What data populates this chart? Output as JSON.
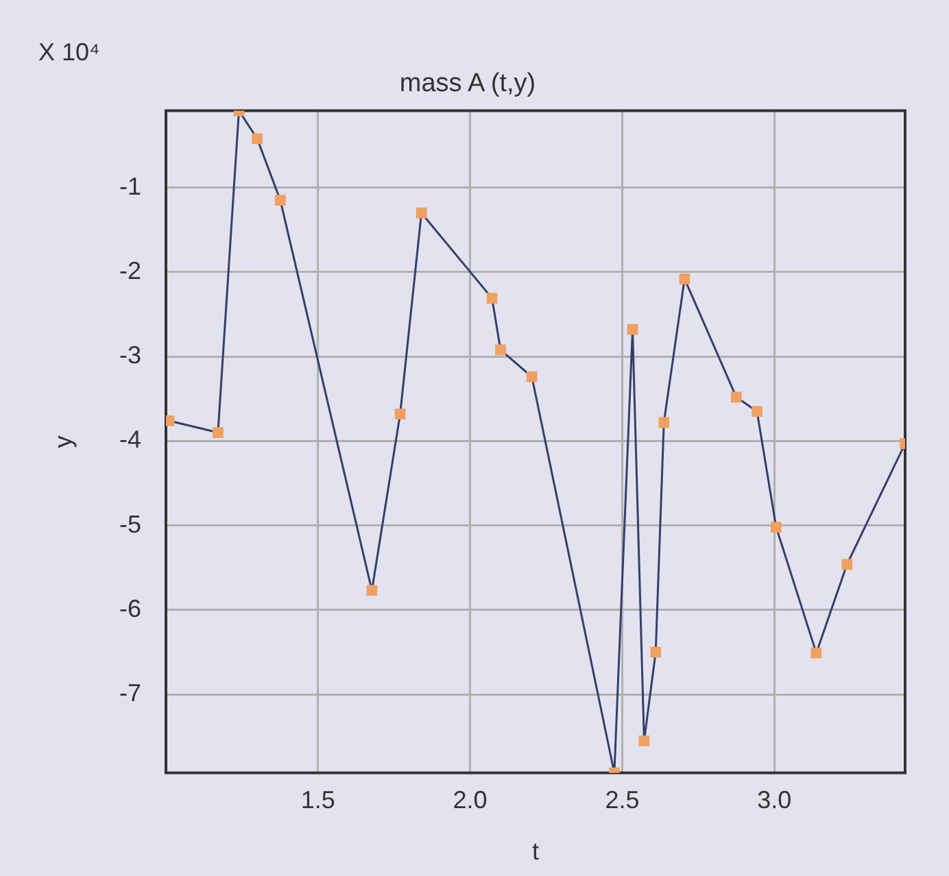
{
  "chart_data": {
    "type": "line",
    "title": "mass A (t,y)",
    "xlabel": "t",
    "ylabel": "y",
    "annotations": [
      "X 10⁴"
    ],
    "x": [
      1.01,
      1.171,
      1.24,
      1.3,
      1.376,
      1.677,
      1.77,
      1.84,
      2.072,
      2.1,
      2.203,
      2.474,
      2.534,
      2.572,
      2.61,
      2.637,
      2.705,
      2.875,
      2.943,
      3.006,
      3.138,
      3.239,
      3.43
    ],
    "series": [
      {
        "color": "#34406b",
        "colors": [
          "#f0a060",
          "#f0a060",
          "#f0a060",
          "#f0a060",
          "#f0a060",
          "#f0a060",
          "#f0a060",
          "#f0a060",
          "#f0a060",
          "#f0a060",
          "#f0a060",
          "#f0a060",
          "#f0a060",
          "#f0a060",
          "#f0a060",
          "#f0a060",
          "#f0a060",
          "#f0a060",
          "#f0a060",
          "#f0a060",
          "#f0a060",
          "#f0a060",
          "#f0a060"
        ],
        "values": [
          -3.76,
          -3.9,
          -0.09,
          -0.42,
          -1.15,
          -5.77,
          -3.68,
          -1.3,
          -2.31,
          -2.92,
          -3.24,
          -7.93,
          -2.68,
          -7.55,
          -6.5,
          -3.78,
          -2.08,
          -3.48,
          -3.65,
          -5.02,
          -6.51,
          -5.46,
          -4.03
        ]
      }
    ],
    "xlim": [
      1.0,
      3.43
    ],
    "xticks": [
      {
        "value": 1.5,
        "label": "1.5"
      },
      {
        "value": 2,
        "label": "2.0"
      },
      {
        "value": 2.5,
        "label": "2.5"
      },
      {
        "value": 3,
        "label": "3.0"
      }
    ],
    "ylim": [
      -7.93,
      -0.09
    ],
    "yticks": [
      -1,
      -2,
      -3,
      -4,
      -5,
      -6,
      -7
    ],
    "grid": true,
    "legend": false,
    "marker": "square",
    "line_style": "solid"
  }
}
